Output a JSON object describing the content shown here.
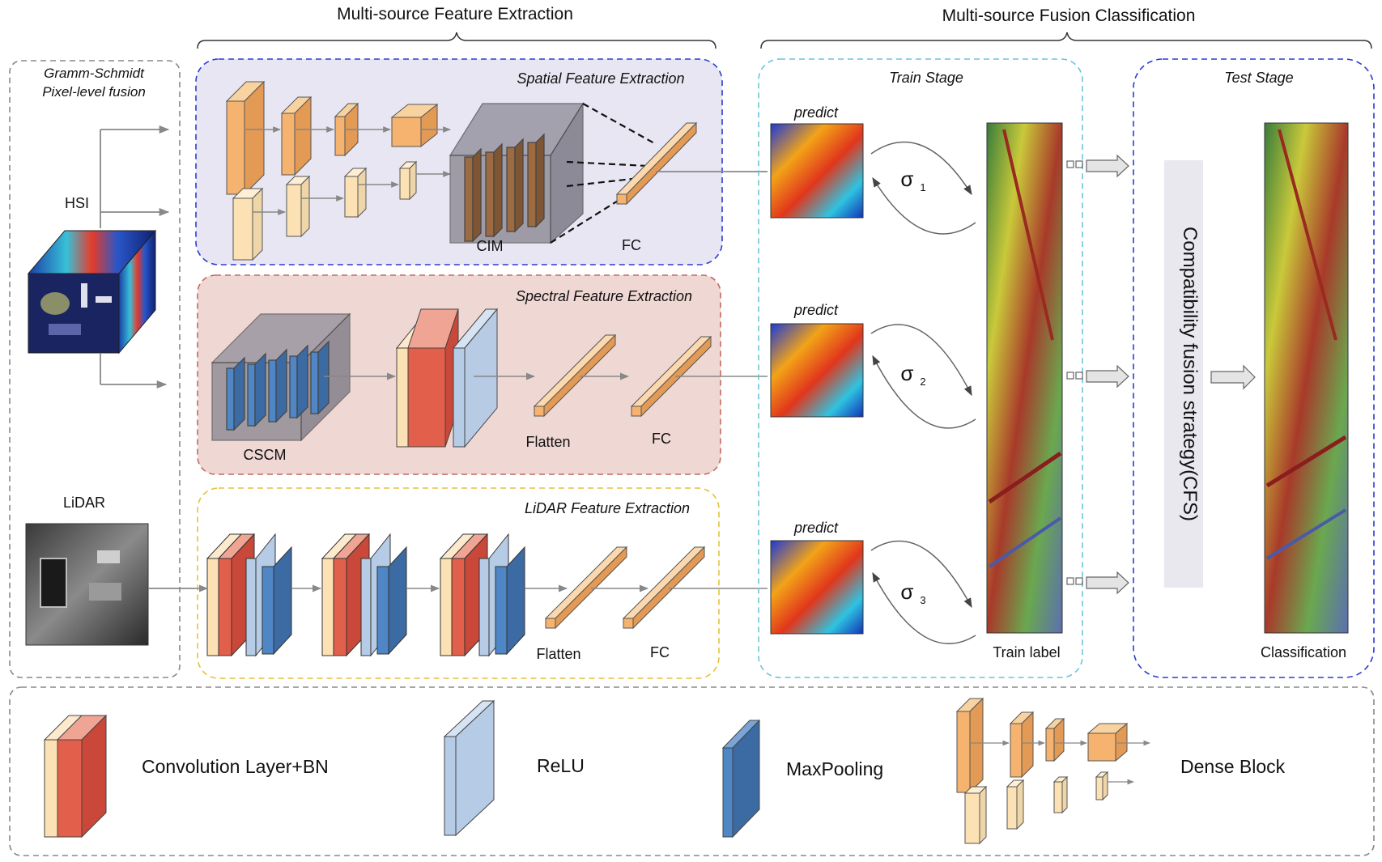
{
  "headers": {
    "extraction": "Multi-source Feature Extraction",
    "fusion": "Multi-source Fusion Classification"
  },
  "fusion_box": {
    "line1": "Gramm-Schmidt",
    "line2": "Pixel-level fusion"
  },
  "inputs": {
    "hsi": "HSI",
    "lidar": "LiDAR"
  },
  "spatial": {
    "title": "Spatial Feature Extraction",
    "cim": "CIM",
    "fc": "FC"
  },
  "spectral": {
    "title": "Spectral Feature Extraction",
    "cscm": "CSCM",
    "flatten": "Flatten",
    "fc": "FC"
  },
  "lidar_branch": {
    "title": "LiDAR Feature Extraction",
    "flatten": "Flatten",
    "fc": "FC"
  },
  "train": {
    "title": "Train Stage",
    "predict": "predict",
    "sigma": "σ",
    "subs": [
      "1",
      "2",
      "3"
    ],
    "label": "Train label"
  },
  "test": {
    "title": "Test Stage",
    "cfs": "Compatibility fusion strategy(CFS)",
    "classification": "Classification"
  },
  "legend": {
    "conv": "Convolution Layer+BN",
    "relu": "ReLU",
    "maxpool": "MaxPooling",
    "dense": "Dense Block"
  },
  "colors": {
    "orange": "#f5b36f",
    "cream": "#fbe1b4",
    "red": "#e2604b",
    "light_blue": "#b5cbe6",
    "blue": "#4f86c6",
    "spatial_bg": "#e8e6f2",
    "spectral_bg": "#efd7d3",
    "cfs_bg": "#e9e8ef"
  }
}
